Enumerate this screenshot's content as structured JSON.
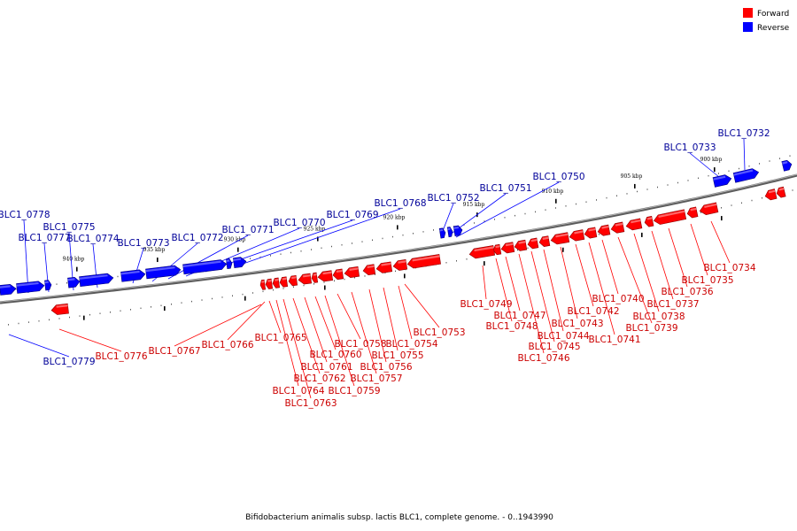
{
  "legend": [
    {
      "label": "Forward",
      "color": "#ff0000"
    },
    {
      "label": "Reverse",
      "color": "#0000ff"
    }
  ],
  "caption": "Bifidobacterium animalis subsp. lactis BLC1, complete genome. - 0..1943990",
  "scale_labels": [
    "900 kbp",
    "905 kbp",
    "910 kbp",
    "915 kbp",
    "920 kbp",
    "925 kbp",
    "930 kbp",
    "935 kbp",
    "940 kbp"
  ],
  "colors": {
    "forward": "#ff0000",
    "reverse": "#0000ff",
    "forward_label": "#cc0000",
    "reverse_label": "#000099",
    "backbone": "#808080"
  },
  "reverse_genes": [
    "BLC1_0732",
    "BLC1_0733",
    "BLC1_0750",
    "BLC1_0751",
    "BLC1_0752",
    "BLC1_0768",
    "BLC1_0769",
    "BLC1_0770",
    "BLC1_0771",
    "BLC1_0772",
    "BLC1_0773",
    "BLC1_0774",
    "BLC1_0775",
    "BLC1_0777",
    "BLC1_0778",
    "BLC1_0779"
  ],
  "forward_genes": [
    "BLC1_0734",
    "BLC1_0735",
    "BLC1_0736",
    "BLC1_0737",
    "BLC1_0738",
    "BLC1_0739",
    "BLC1_0740",
    "BLC1_0741",
    "BLC1_0742",
    "BLC1_0743",
    "BLC1_0744",
    "BLC1_0745",
    "BLC1_0746",
    "BLC1_0747",
    "BLC1_0748",
    "BLC1_0749",
    "BLC1_0753",
    "BLC1_0754",
    "BLC1_0755",
    "BLC1_0756",
    "BLC1_0757",
    "BLC1_0758",
    "BLC1_0759",
    "BLC1_0760",
    "BLC1_0761",
    "BLC1_0762",
    "BLC1_0763",
    "BLC1_0764",
    "BLC1_0765",
    "BLC1_0766",
    "BLC1_0767",
    "BLC1_0776"
  ]
}
